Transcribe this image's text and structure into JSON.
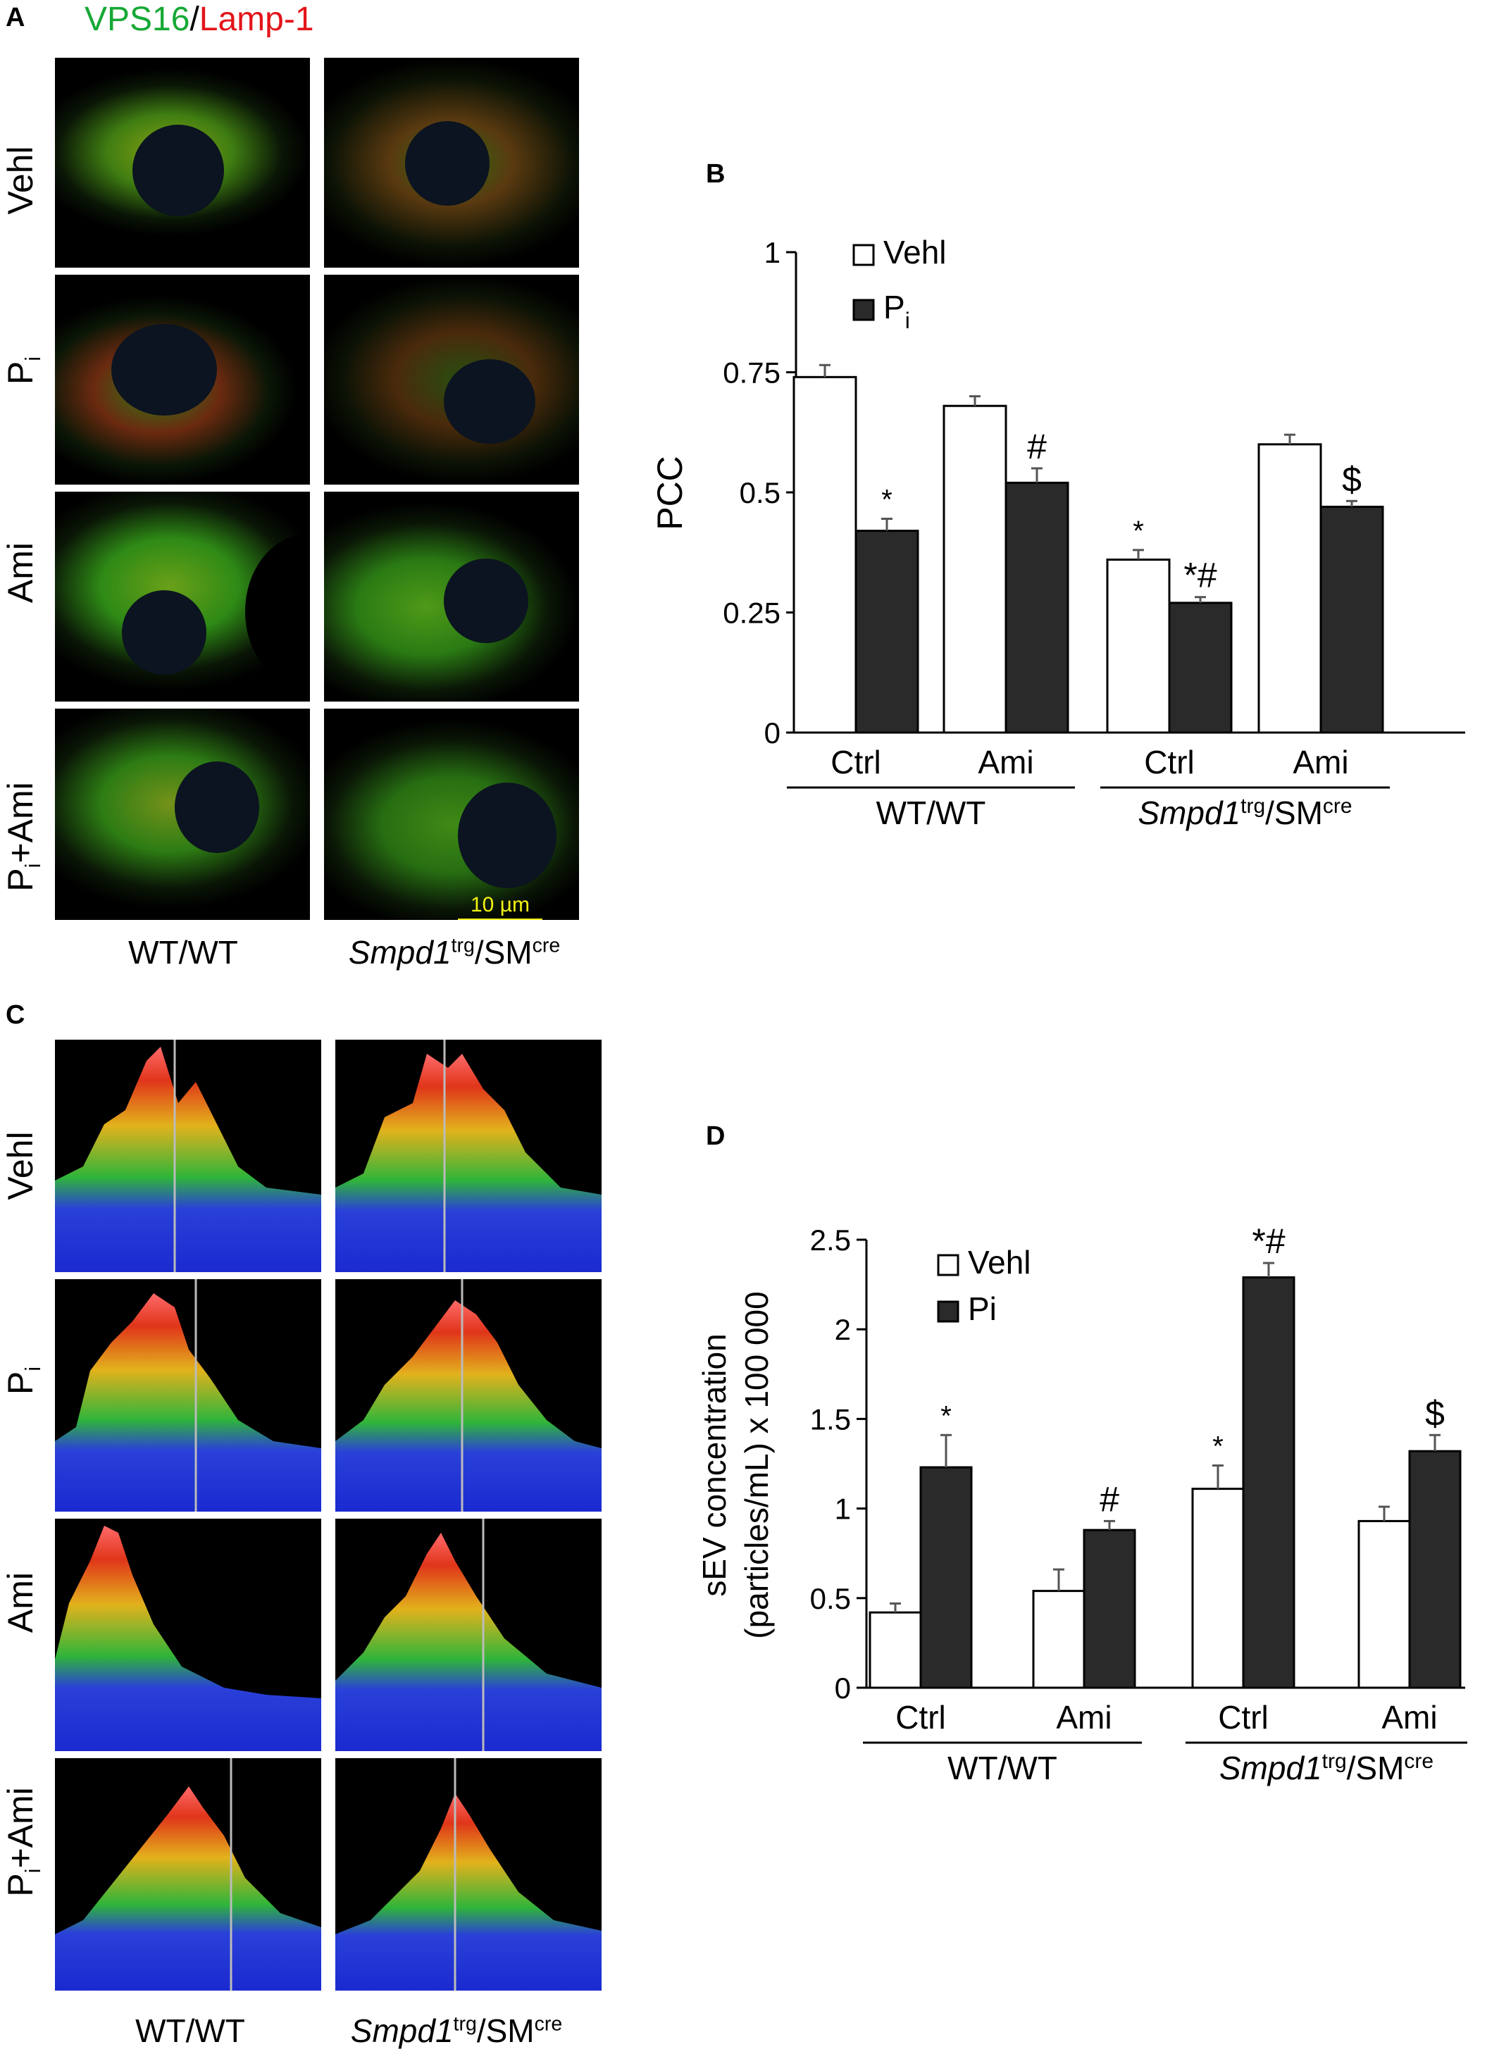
{
  "panel_labels": {
    "a": "A",
    "b": "B",
    "c": "C",
    "d": "D"
  },
  "panel_a": {
    "title_green": "VPS16",
    "title_sep": "/",
    "title_red": "Lamp-1",
    "rows": [
      "Vehl",
      "P",
      "Ami",
      "P"
    ],
    "row_subs": [
      "",
      "i",
      "",
      "i"
    ],
    "row_suffix": [
      "",
      "",
      "",
      "+Ami"
    ],
    "col_wt": "WT/WT",
    "col_smpd_italic": "Smpd1",
    "col_smpd_sup1": "trg",
    "col_smpd_mid": "/SM",
    "col_smpd_sup2": "cre",
    "scale_bar": "10 µm"
  },
  "panel_c": {
    "rows": [
      "Vehl",
      "P",
      "Ami",
      "P"
    ],
    "row_subs": [
      "",
      "i",
      "",
      "i"
    ],
    "row_suffix": [
      "",
      "",
      "",
      "+Ami"
    ],
    "col_wt": "WT/WT",
    "col_smpd_italic": "Smpd1",
    "col_smpd_sup1": "trg",
    "col_smpd_mid": "/SM",
    "col_smpd_sup2": "cre"
  },
  "chart_data": [
    {
      "type": "bar",
      "panel": "B",
      "ylabel": "PCC",
      "ylim": [
        0,
        1
      ],
      "yticks": [
        "0",
        "0.25",
        "0.5",
        "0.75",
        "1"
      ],
      "ytick_values": [
        0,
        0.25,
        0.5,
        0.75,
        1
      ],
      "categories": [
        "Ctrl",
        "Ami",
        "Ctrl",
        "Ami"
      ],
      "groups": [
        "WT/WT",
        "Smpd1trg/SMcre"
      ],
      "group_wt": "WT/WT",
      "group_smpd_italic": "Smpd1",
      "group_smpd_sup1": "trg",
      "group_smpd_mid": "/SM",
      "group_smpd_sup2": "cre",
      "legend": [
        {
          "name": "Vehl",
          "sub": "",
          "color": "#ffffff"
        },
        {
          "name": "P",
          "sub": "i",
          "color": "#2a2a2a"
        }
      ],
      "series": [
        {
          "name": "Vehl",
          "values": [
            0.74,
            0.68,
            0.36,
            0.6
          ],
          "errors": [
            0.025,
            0.02,
            0.02,
            0.02
          ],
          "annotations": [
            "",
            "",
            "*",
            ""
          ]
        },
        {
          "name": "Pi",
          "values": [
            0.42,
            0.52,
            0.27,
            0.47
          ],
          "errors": [
            0.025,
            0.03,
            0.012,
            0.012
          ],
          "annotations": [
            "*",
            "#",
            "*#",
            "$"
          ]
        }
      ]
    },
    {
      "type": "bar",
      "panel": "D",
      "ylabel_line1": "sEV concentration",
      "ylabel_line2": "(particles/mL) x 100 000",
      "ylim": [
        0,
        2.5
      ],
      "yticks": [
        "0",
        "0.5",
        "1",
        "1.5",
        "2",
        "2.5"
      ],
      "ytick_values": [
        0,
        0.5,
        1,
        1.5,
        2,
        2.5
      ],
      "categories": [
        "Ctrl",
        "Ami",
        "Ctrl",
        "Ami"
      ],
      "groups": [
        "WT/WT",
        "Smpd1trg/SMcre"
      ],
      "group_wt": "WT/WT",
      "group_smpd_italic": "Smpd1",
      "group_smpd_sup1": "trg",
      "group_smpd_mid": "/SM",
      "group_smpd_sup2": "cre",
      "legend": [
        {
          "name": "Vehl",
          "sub": "",
          "color": "#ffffff"
        },
        {
          "name": "Pi",
          "sub": "",
          "color": "#2a2a2a"
        }
      ],
      "series": [
        {
          "name": "Vehl",
          "values": [
            0.42,
            0.54,
            1.11,
            0.93
          ],
          "errors": [
            0.05,
            0.12,
            0.13,
            0.08
          ],
          "annotations": [
            "",
            "",
            "*",
            ""
          ]
        },
        {
          "name": "Pi",
          "values": [
            1.23,
            0.88,
            2.29,
            1.32
          ],
          "errors": [
            0.18,
            0.05,
            0.08,
            0.09
          ],
          "annotations": [
            "*",
            "#",
            "*#",
            "$"
          ]
        }
      ]
    }
  ]
}
